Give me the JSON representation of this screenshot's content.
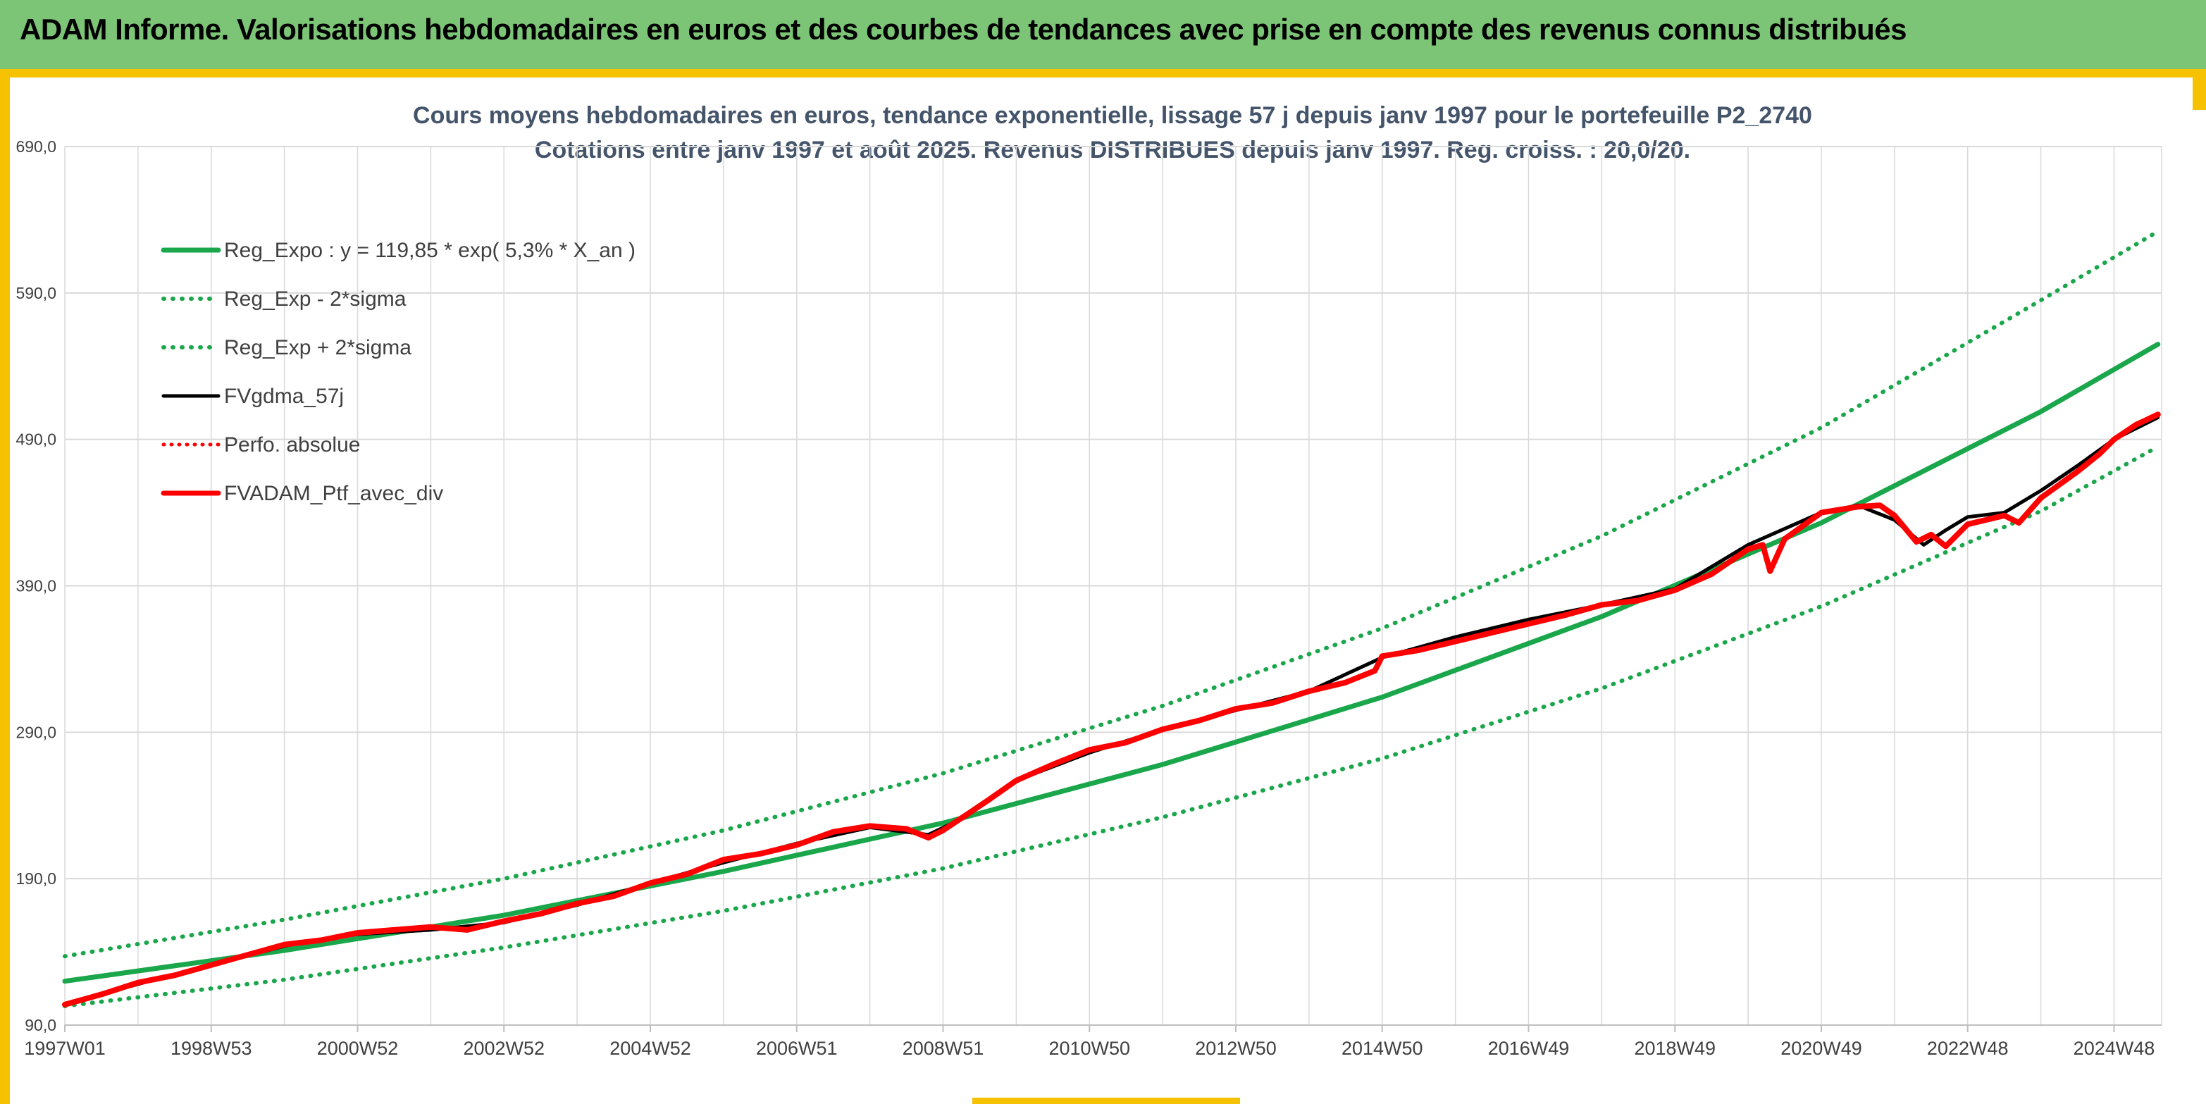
{
  "header": {
    "title": "ADAM Informe. Valorisations hebdomadaires en euros et des courbes de tendances avec prise en compte des revenus connus distribués"
  },
  "colors": {
    "header_bg": "#7cc576",
    "accent": "#f6c200",
    "trend_green": "#1aa64b",
    "perf_red": "#ff0000",
    "smooth_black": "#000000",
    "grid": "#d9d9d9"
  },
  "chart_data": {
    "type": "line",
    "title": "Cours moyens hebdomadaires en euros, tendance exponentielle, lissage 57 j depuis janv 1997 pour le portefeuille P2_2740",
    "subtitle": "Cotations entre janv 1997 et août 2025. Revenus DISTRIBUES depuis janv 1997. Reg. croiss. : 20,0/20.",
    "xlabel": "",
    "ylabel": "",
    "ylim": [
      90,
      690
    ],
    "yticks": [
      "90,0",
      "190,0",
      "290,0",
      "390,0",
      "490,0",
      "590,0",
      "690,0"
    ],
    "xlim": [
      1997.0,
      2025.65
    ],
    "xticks": [
      "1997W01",
      "1998W53",
      "2000W52",
      "2002W52",
      "2004W52",
      "2006W51",
      "2008W51",
      "2010W50",
      "2012W50",
      "2014W50",
      "2016W49",
      "2018W49",
      "2020W49",
      "2022W48",
      "2024W48"
    ],
    "xtick_years": [
      1997.0,
      1999.0,
      2001.0,
      2003.0,
      2005.0,
      2007.0,
      2009.0,
      2011.0,
      2013.0,
      2015.0,
      2017.0,
      2019.0,
      2021.0,
      2023.0,
      2025.0
    ],
    "grid": true,
    "legend_position": "top-left",
    "series": [
      {
        "name": "Reg_Expo : y = 119,85 * exp( 5,3% *  X_an )",
        "style": "solid-green",
        "x": [
          1997.0,
          2000.0,
          2003.0,
          2006.0,
          2009.0,
          2012.0,
          2015.0,
          2018.0,
          2021.0,
          2024.0,
          2025.6
        ],
        "y": [
          120,
          141,
          165,
          195,
          228,
          268,
          314,
          369,
          433,
          509,
          555
        ]
      },
      {
        "name": "Reg_Exp - 2*sigma",
        "style": "dotted-green",
        "x": [
          1997.0,
          2000.0,
          2003.0,
          2006.0,
          2009.0,
          2012.0,
          2015.0,
          2018.0,
          2021.0,
          2024.0,
          2025.6
        ],
        "y": [
          103,
          121,
          143,
          168,
          197,
          232,
          272,
          320,
          376,
          441,
          485
        ]
      },
      {
        "name": "Reg_Exp + 2*sigma",
        "style": "dotted-green",
        "x": [
          1997.0,
          2000.0,
          2003.0,
          2006.0,
          2009.0,
          2012.0,
          2015.0,
          2018.0,
          2021.0,
          2024.0,
          2025.6
        ],
        "y": [
          137,
          162,
          190,
          223,
          262,
          308,
          361,
          424,
          498,
          585,
          632
        ]
      },
      {
        "name": "FVgdma_57j",
        "style": "solid-black",
        "x": [
          1997.0,
          1998.0,
          1999.0,
          2000.0,
          2001.0,
          2002.0,
          2003.0,
          2004.0,
          2005.0,
          2006.0,
          2007.0,
          2008.0,
          2008.8,
          2009.3,
          2010.0,
          2011.0,
          2012.0,
          2013.0,
          2014.0,
          2015.0,
          2016.0,
          2017.0,
          2018.0,
          2019.0,
          2020.0,
          2021.0,
          2021.5,
          2022.0,
          2022.4,
          2022.7,
          2023.0,
          2023.5,
          2024.0,
          2024.5,
          2025.0,
          2025.6
        ],
        "y": [
          104,
          118,
          131,
          144,
          152,
          155,
          160,
          172,
          187,
          201,
          214,
          225,
          220,
          232,
          257,
          276,
          292,
          305,
          318,
          341,
          355,
          367,
          377,
          388,
          418,
          440,
          445,
          435,
          418,
          428,
          437,
          440,
          455,
          472,
          490,
          505
        ]
      },
      {
        "name": "Perfo. absolue",
        "style": "dotted-red",
        "x": [
          1997.0,
          1998.0,
          1999.0,
          2000.0,
          2001.0,
          2002.0,
          2003.0,
          2004.0,
          2005.0,
          2006.0,
          2007.0,
          2008.0,
          2008.8,
          2009.3,
          2010.0,
          2011.0,
          2012.0,
          2013.0,
          2014.0,
          2015.0,
          2016.0,
          2017.0,
          2018.0,
          2019.0,
          2020.0,
          2021.0,
          2021.5,
          2022.0,
          2022.4,
          2022.7,
          2023.0,
          2023.5,
          2024.0,
          2024.5,
          2025.0,
          2025.6
        ],
        "y": [
          104,
          118,
          131,
          144,
          152,
          155,
          160,
          172,
          187,
          201,
          214,
          225,
          220,
          232,
          257,
          276,
          292,
          305,
          318,
          341,
          355,
          367,
          377,
          388,
          418,
          440,
          445,
          435,
          418,
          428,
          437,
          440,
          455,
          472,
          490,
          505
        ]
      },
      {
        "name": "FVADAM_Ptf_avec_div",
        "style": "solid-red",
        "x": [
          1997.0,
          1997.5,
          1998.0,
          1998.5,
          1999.0,
          1999.5,
          2000.0,
          2000.5,
          2001.0,
          2001.5,
          2002.0,
          2002.5,
          2003.0,
          2003.5,
          2004.0,
          2004.5,
          2005.0,
          2005.5,
          2006.0,
          2006.5,
          2007.0,
          2007.5,
          2008.0,
          2008.5,
          2008.8,
          2009.0,
          2009.3,
          2009.6,
          2010.0,
          2010.5,
          2011.0,
          2011.5,
          2012.0,
          2012.5,
          2013.0,
          2013.5,
          2014.0,
          2014.5,
          2014.9,
          2015.0,
          2015.5,
          2016.0,
          2016.5,
          2017.0,
          2017.5,
          2018.0,
          2018.5,
          2019.0,
          2019.5,
          2020.0,
          2020.2,
          2020.3,
          2020.5,
          2021.0,
          2021.5,
          2021.8,
          2022.0,
          2022.3,
          2022.5,
          2022.7,
          2023.0,
          2023.5,
          2023.7,
          2024.0,
          2024.5,
          2024.8,
          2025.0,
          2025.3,
          2025.6
        ],
        "y": [
          104,
          111,
          119,
          124,
          131,
          138,
          145,
          148,
          153,
          155,
          157,
          155,
          161,
          166,
          173,
          178,
          187,
          193,
          203,
          207,
          213,
          222,
          226,
          224,
          218,
          223,
          233,
          243,
          257,
          268,
          278,
          283,
          292,
          298,
          306,
          310,
          318,
          324,
          332,
          342,
          346,
          352,
          358,
          364,
          370,
          377,
          380,
          387,
          398,
          415,
          418,
          400,
          422,
          440,
          444,
          445,
          438,
          420,
          425,
          417,
          432,
          438,
          433,
          450,
          468,
          480,
          490,
          500,
          507
        ]
      }
    ]
  }
}
